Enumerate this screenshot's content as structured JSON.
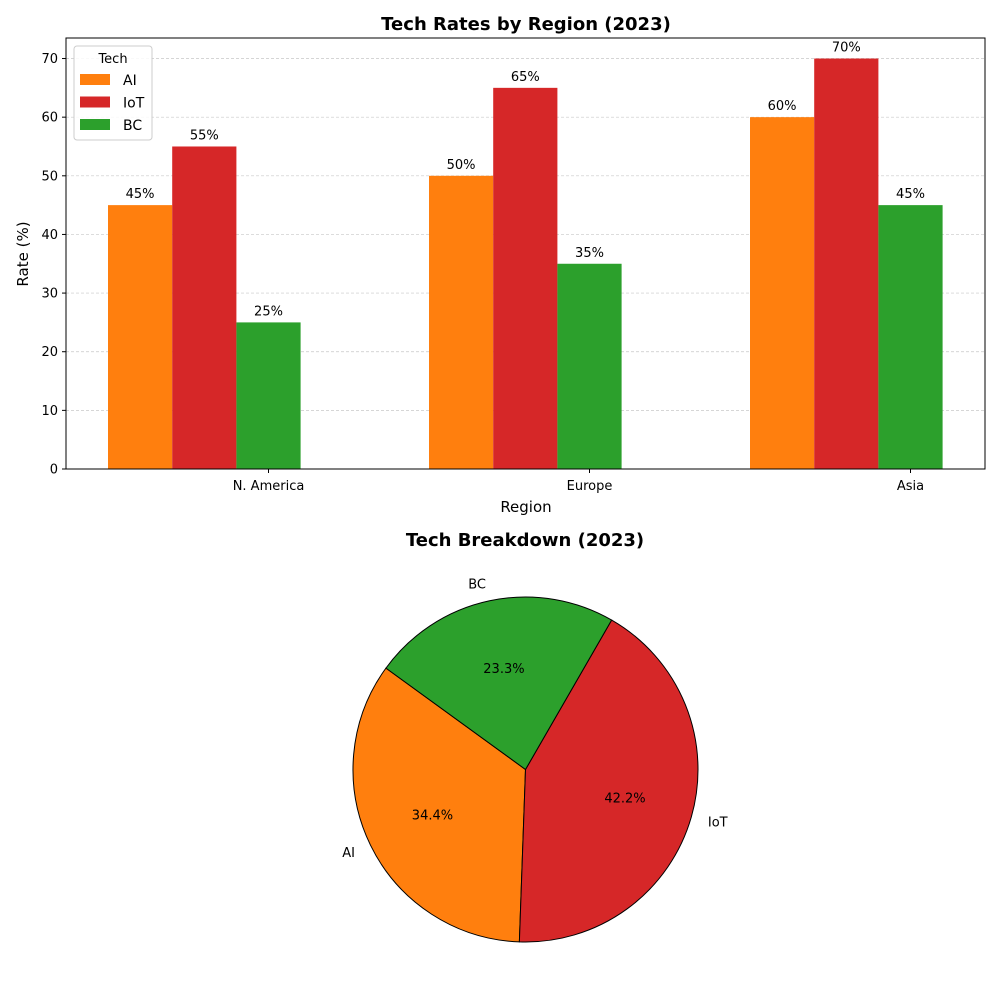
{
  "chart_data": [
    {
      "type": "bar",
      "title": "Tech Rates by Region (2023)",
      "xlabel": "Region",
      "ylabel": "Rate (%)",
      "categories": [
        "N. America",
        "Europe",
        "Asia"
      ],
      "ylim": [
        0,
        73.5
      ],
      "yticks": [
        0,
        10,
        20,
        30,
        40,
        50,
        60,
        70
      ],
      "grid": "y-dashed",
      "legend": {
        "title": "Tech",
        "placement": "top-left"
      },
      "series": [
        {
          "name": "AI",
          "values": [
            45,
            50,
            60
          ],
          "labels": [
            "45%",
            "50%",
            "60%"
          ],
          "color": "#ff7f0e"
        },
        {
          "name": "IoT",
          "values": [
            55,
            65,
            70
          ],
          "labels": [
            "55%",
            "65%",
            "70%"
          ],
          "color": "#d62728"
        },
        {
          "name": "BC",
          "values": [
            25,
            35,
            45
          ],
          "labels": [
            "25%",
            "35%",
            "45%"
          ],
          "color": "#2ca02c"
        }
      ]
    },
    {
      "type": "pie",
      "title": "Tech Breakdown (2023)",
      "slices": [
        {
          "label": "AI",
          "value": 34.4,
          "pct_label": "34.4%",
          "color": "#ff7f0e"
        },
        {
          "label": "IoT",
          "value": 42.2,
          "pct_label": "42.2%",
          "color": "#d62728"
        },
        {
          "label": "BC",
          "value": 23.3,
          "pct_label": "23.3%",
          "color": "#2ca02c"
        }
      ]
    }
  ]
}
